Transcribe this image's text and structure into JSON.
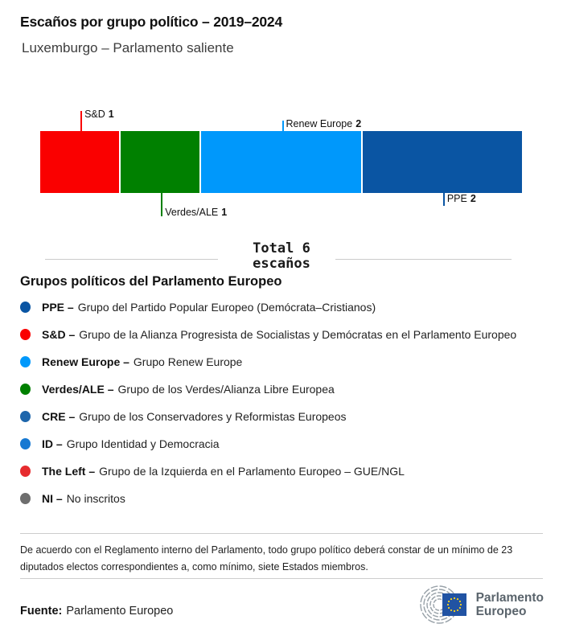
{
  "chart_data": {
    "type": "bar",
    "orientation": "horizontal-stacked",
    "title": "Escaños por grupo político – 2019–2024",
    "subtitle": "Luxemburgo – Parlamento saliente",
    "total_seats": 6,
    "total_line1": "Total 6",
    "total_line2": "escaños",
    "categories": [
      "S&D",
      "Verdes/ALE",
      "Renew Europe",
      "PPE"
    ],
    "values": [
      1,
      1,
      2,
      2
    ],
    "segments": [
      {
        "group": "S&D",
        "seats": 1,
        "color": "#fa0000",
        "label_side": "above",
        "label_level": 2
      },
      {
        "group": "Verdes/ALE",
        "seats": 1,
        "color": "#008000",
        "label_side": "below",
        "label_level": 2
      },
      {
        "group": "Renew Europe",
        "seats": 2,
        "color": "#0098fb",
        "label_side": "above",
        "label_level": 1
      },
      {
        "group": "PPE",
        "seats": 2,
        "color": "#0a55a3",
        "label_side": "below",
        "label_level": 1
      }
    ]
  },
  "legend": {
    "title": "Grupos políticos del Parlamento Europeo",
    "items": [
      {
        "name_label": "PPE –",
        "desc": "Grupo del Partido Popular Europeo (Demócrata–Cristianos)",
        "color": "#0a55a3"
      },
      {
        "name_label": "S&D –",
        "desc": "Grupo de la Alianza Progresista de Socialistas y Demócratas en el Parlamento Europeo",
        "color": "#fa0000"
      },
      {
        "name_label": "Renew Europe –",
        "desc": "Grupo Renew Europe",
        "color": "#0098fb"
      },
      {
        "name_label": "Verdes/ALE –",
        "desc": "Grupo de los Verdes/Alianza Libre Europea",
        "color": "#008000"
      },
      {
        "name_label": "CRE –",
        "desc": "Grupo de los Conservadores y Reformistas Europeos",
        "color": "#1e66ab"
      },
      {
        "name_label": "ID –",
        "desc": "Grupo Identidad y Democracia",
        "color": "#1779d2"
      },
      {
        "name_label": "The Left –",
        "desc": "Grupo de la Izquierda en el Parlamento Europeo – GUE/NGL",
        "color": "#e62b2e"
      },
      {
        "name_label": "NI –",
        "desc": "No inscritos",
        "color": "#6e6e6e"
      }
    ]
  },
  "footnote": "De acuerdo con el Reglamento interno del Parlamento, todo grupo político deberá constar de un mínimo de 23 diputados electos correspondientes a, como mínimo, siete Estados miembros.",
  "footer": {
    "source_label": "Fuente:",
    "source_value": "Parlamento Europeo",
    "logo_line1": "Parlamento",
    "logo_line2": "Europeo",
    "logo_colors": {
      "arcs": "#98a1a8",
      "flag": "#2153a3",
      "stars": "#ffd617",
      "text": "#5a646c"
    }
  }
}
